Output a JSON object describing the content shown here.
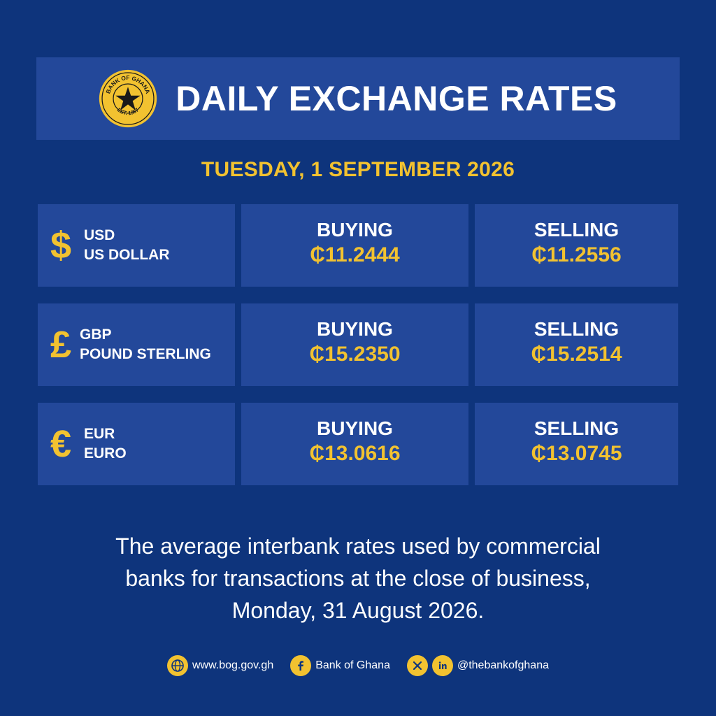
{
  "header": {
    "logo_text_top": "BANK OF GHANA",
    "logo_text_bottom": "EST. 1957",
    "title": "DAILY EXCHANGE RATES"
  },
  "date": "TUESDAY, 1 SEPTEMBER 2026",
  "rates": [
    {
      "symbol": "$",
      "code": "USD",
      "name": "US DOLLAR",
      "buying_label": "BUYING",
      "buying": "₵11.2444",
      "selling_label": "SELLING",
      "selling": "₵11.2556"
    },
    {
      "symbol": "£",
      "code": "GBP",
      "name": "POUND STERLING",
      "buying_label": "BUYING",
      "buying": "₵15.2350",
      "selling_label": "SELLING",
      "selling": "₵15.2514"
    },
    {
      "symbol": "€",
      "code": "EUR",
      "name": "EURO",
      "buying_label": "BUYING",
      "buying": "₵13.0616",
      "selling_label": "SELLING",
      "selling": "₵13.0745"
    }
  ],
  "note": {
    "line1": "The average interbank rates used by commercial",
    "line2": "banks for transactions at the close of business,",
    "line3": "Monday, 31 August 2026."
  },
  "footer": {
    "website": "www.bog.gov.gh",
    "facebook": "Bank of Ghana",
    "handle": "@thebankofghana",
    "icons": [
      "globe-icon",
      "facebook-icon",
      "x-icon",
      "linkedin-icon"
    ]
  },
  "colors": {
    "background": "#0e347c",
    "panel": "#23489a",
    "accent": "#f2c230",
    "text": "#ffffff"
  }
}
